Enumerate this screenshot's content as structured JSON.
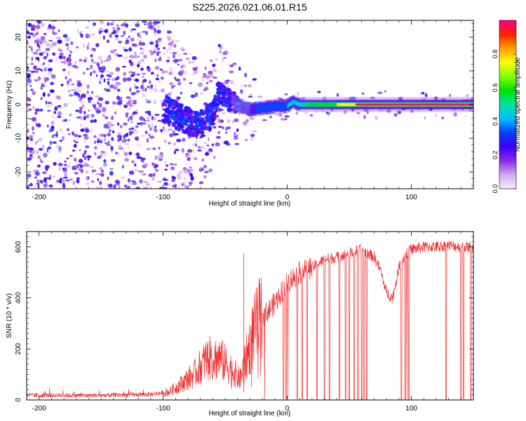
{
  "title": "S225.2026.021.06.01.R15",
  "chart_data": [
    {
      "type": "heatmap",
      "title": "S225.2026.021.06.01.R15",
      "xlabel": "Height of straight line (km)",
      "ylabel": "Frequency (Hz)",
      "xlim": [
        -210,
        150
      ],
      "ylim": [
        -25,
        25
      ],
      "xticks": [
        -200,
        -100,
        0,
        100
      ],
      "yticks": [
        -20,
        -10,
        0,
        10,
        20
      ],
      "colorbar": {
        "label": "Normalized spectral amplitude",
        "range": [
          0,
          1
        ],
        "ticks": [
          "0.0",
          "0.2",
          "0.4",
          "0.6",
          "0.8"
        ],
        "tick_values": [
          0.0,
          0.2,
          0.4,
          0.6,
          0.8
        ],
        "colors": [
          "#f4ecfb",
          "#cfa8f2",
          "#8a2be2",
          "#3a00ff",
          "#0040ff",
          "#00c0ff",
          "#00e0a0",
          "#00e000",
          "#80ff00",
          "#ffff00",
          "#ffa000",
          "#ff2000",
          "#ff0080"
        ]
      },
      "ridge": {
        "x": [
          -100,
          -90,
          -80,
          -70,
          -60,
          -55,
          -50,
          -40,
          -30,
          -20,
          -10,
          0,
          5,
          10,
          20,
          40,
          60,
          80,
          100,
          120,
          150
        ],
        "y": [
          -1,
          -3,
          -5,
          -6,
          -3,
          4,
          2,
          0,
          -1.5,
          -1,
          -0.5,
          -0.5,
          0.8,
          0,
          0,
          0,
          0,
          0,
          0,
          0,
          0
        ]
      }
    },
    {
      "type": "line",
      "title": "",
      "xlabel": "Height of straight line (km)",
      "ylabel": "SNR (10 * v/v)",
      "xlim": [
        -210,
        150
      ],
      "ylim": [
        0,
        660
      ],
      "xticks": [
        -200,
        -100,
        0,
        100
      ],
      "yticks": [
        0,
        200,
        400,
        600
      ],
      "color": "#ee3030",
      "series": [
        {
          "name": "SNR",
          "x": [
            -210,
            -190,
            -170,
            -150,
            -130,
            -110,
            -95,
            -85,
            -75,
            -65,
            -55,
            -45,
            -38,
            -32,
            -28,
            -24,
            -20,
            -15,
            -10,
            -5,
            0,
            5,
            10,
            20,
            30,
            40,
            50,
            60,
            70,
            75,
            80,
            85,
            90,
            95,
            100,
            110,
            120,
            130,
            140,
            150
          ],
          "y": [
            18,
            18,
            18,
            18,
            20,
            22,
            32,
            65,
            100,
            160,
            165,
            120,
            80,
            180,
            250,
            300,
            330,
            350,
            380,
            420,
            460,
            480,
            500,
            520,
            550,
            560,
            575,
            590,
            560,
            510,
            420,
            400,
            520,
            570,
            590,
            600,
            600,
            605,
            600,
            600
          ]
        }
      ],
      "dropouts_x": [
        -3,
        -1,
        8,
        12,
        16,
        24,
        30,
        34,
        42,
        47,
        50,
        54,
        57,
        60,
        62,
        64,
        92,
        95,
        98,
        128,
        140,
        142,
        148
      ]
    }
  ]
}
